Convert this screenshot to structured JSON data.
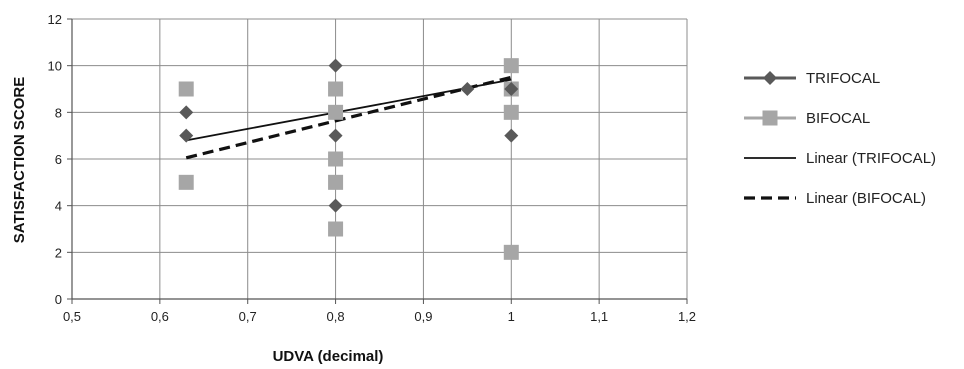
{
  "chart_data": {
    "type": "scatter",
    "xlabel": "UDVA (decimal)",
    "ylabel": "SATISFACTION SCORE",
    "xlim": [
      0.5,
      1.2
    ],
    "ylim": [
      0,
      12
    ],
    "x_ticks": [
      "0,5",
      "0,6",
      "0,7",
      "0,8",
      "0,9",
      "1",
      "1,1",
      "1,2"
    ],
    "y_ticks": [
      "0",
      "2",
      "4",
      "6",
      "8",
      "10",
      "12"
    ],
    "grid": true,
    "legend_position": "right",
    "series": [
      {
        "name": "TRIFOCAL",
        "marker": "diamond",
        "color": "#595959",
        "points": [
          {
            "x": 0.63,
            "y": 8
          },
          {
            "x": 0.63,
            "y": 7
          },
          {
            "x": 0.8,
            "y": 10
          },
          {
            "x": 0.8,
            "y": 7
          },
          {
            "x": 0.8,
            "y": 4
          },
          {
            "x": 0.95,
            "y": 9
          },
          {
            "x": 1.0,
            "y": 7
          },
          {
            "x": 1.0,
            "y": 9
          }
        ]
      },
      {
        "name": "BIFOCAL",
        "marker": "square",
        "color": "#a6a6a6",
        "points": [
          {
            "x": 0.63,
            "y": 9
          },
          {
            "x": 0.63,
            "y": 5
          },
          {
            "x": 0.8,
            "y": 9
          },
          {
            "x": 0.8,
            "y": 8
          },
          {
            "x": 0.8,
            "y": 6
          },
          {
            "x": 0.8,
            "y": 5
          },
          {
            "x": 0.8,
            "y": 3
          },
          {
            "x": 1.0,
            "y": 10
          },
          {
            "x": 1.0,
            "y": 9
          },
          {
            "x": 1.0,
            "y": 8
          },
          {
            "x": 1.0,
            "y": 2
          }
        ]
      }
    ],
    "trendlines": [
      {
        "name": "Linear (TRIFOCAL)",
        "style": "solid",
        "color": "#111111",
        "x": [
          0.63,
          1.0
        ],
        "y": [
          6.8,
          9.4
        ]
      },
      {
        "name": "Linear (BIFOCAL)",
        "style": "dashed",
        "color": "#111111",
        "x": [
          0.63,
          1.0
        ],
        "y": [
          6.05,
          9.5
        ]
      }
    ]
  }
}
